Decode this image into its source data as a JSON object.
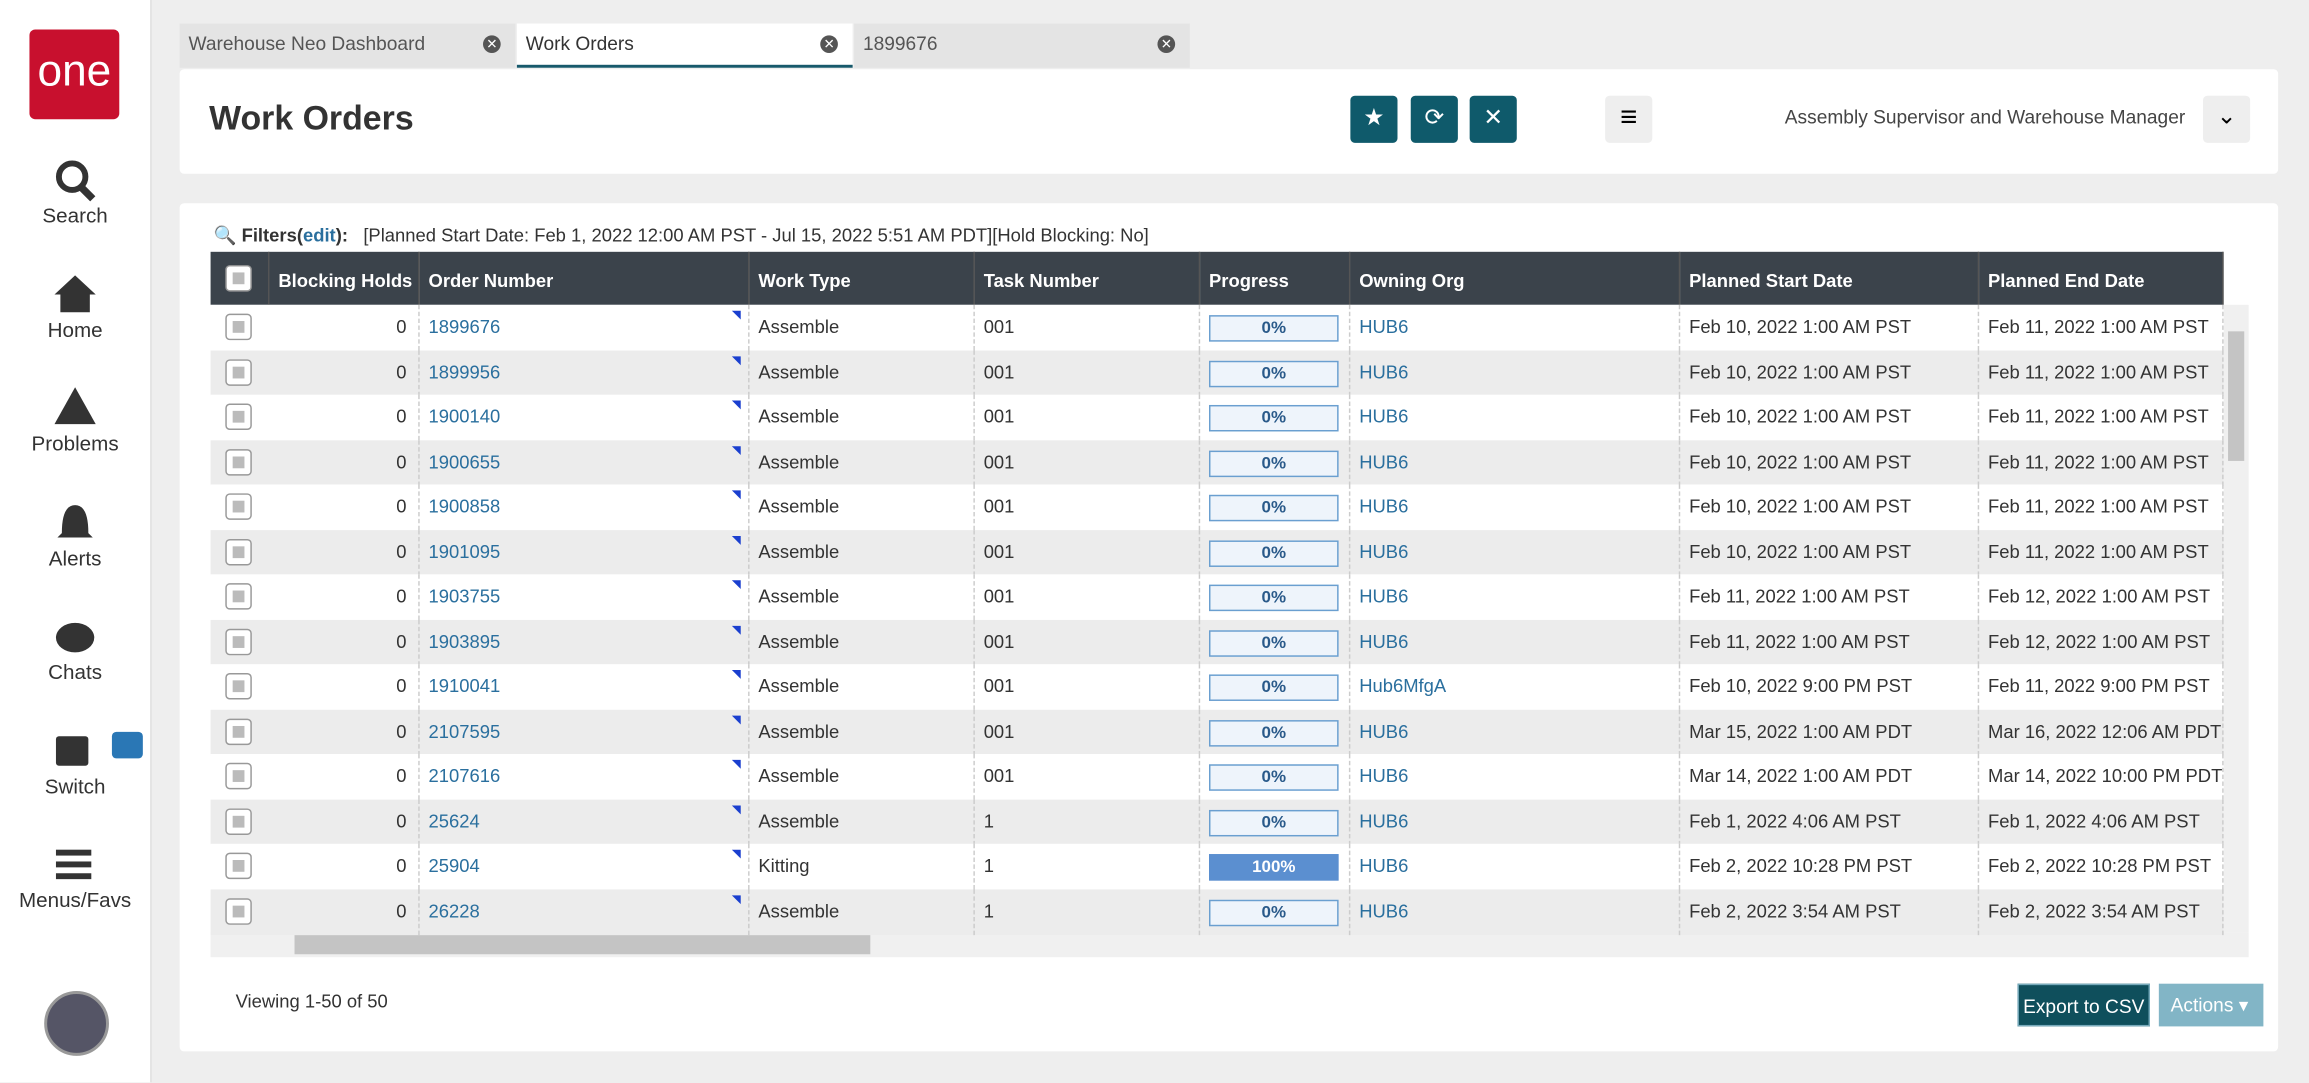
{
  "tabs": [
    "Warehouse Neo Dashboard",
    "Work Orders",
    "1899676"
  ],
  "logo": "one",
  "sidebar": [
    "Search",
    "Home",
    "Problems",
    "Alerts",
    "Chats",
    "Switch",
    "Menus/Favs"
  ],
  "header": {
    "title": "Work Orders",
    "user_role": "Assembly Supervisor and Warehouse Manager"
  },
  "filters": {
    "label": "Filters",
    "open": "(",
    "link": "edit",
    "close": "):",
    "criteria": "[Planned Start Date: Feb 1, 2022 12:00 AM PST - Jul 15, 2022 5:51 AM PDT][Hold Blocking: No]"
  },
  "table": {
    "columns": [
      "Blocking Holds",
      "Order Number",
      "Work Type",
      "Task Number",
      "Progress",
      "Owning Org",
      "Planned Start Date",
      "Planned End Date"
    ],
    "rows": [
      [
        0,
        "1899676",
        "Assemble",
        "001",
        {
          "value": 0,
          "label": "0%"
        },
        "HUB6",
        "Feb 10, 2022 1:00 AM PST",
        "Feb 11, 2022 1:00 AM PST"
      ],
      [
        0,
        "1899956",
        "Assemble",
        "001",
        {
          "value": 0,
          "label": "0%"
        },
        "HUB6",
        "Feb 10, 2022 1:00 AM PST",
        "Feb 11, 2022 1:00 AM PST"
      ],
      [
        0,
        "1900140",
        "Assemble",
        "001",
        {
          "value": 0,
          "label": "0%"
        },
        "HUB6",
        "Feb 10, 2022 1:00 AM PST",
        "Feb 11, 2022 1:00 AM PST"
      ],
      [
        0,
        "1900655",
        "Assemble",
        "001",
        {
          "value": 0,
          "label": "0%"
        },
        "HUB6",
        "Feb 10, 2022 1:00 AM PST",
        "Feb 11, 2022 1:00 AM PST"
      ],
      [
        0,
        "1900858",
        "Assemble",
        "001",
        {
          "value": 0,
          "label": "0%"
        },
        "HUB6",
        "Feb 10, 2022 1:00 AM PST",
        "Feb 11, 2022 1:00 AM PST"
      ],
      [
        0,
        "1901095",
        "Assemble",
        "001",
        {
          "value": 0,
          "label": "0%"
        },
        "HUB6",
        "Feb 10, 2022 1:00 AM PST",
        "Feb 11, 2022 1:00 AM PST"
      ],
      [
        0,
        "1903755",
        "Assemble",
        "001",
        {
          "value": 0,
          "label": "0%"
        },
        "HUB6",
        "Feb 11, 2022 1:00 AM PST",
        "Feb 12, 2022 1:00 AM PST"
      ],
      [
        0,
        "1903895",
        "Assemble",
        "001",
        {
          "value": 0,
          "label": "0%"
        },
        "HUB6",
        "Feb 11, 2022 1:00 AM PST",
        "Feb 12, 2022 1:00 AM PST"
      ],
      [
        0,
        "1910041",
        "Assemble",
        "001",
        {
          "value": 0,
          "label": "0%"
        },
        "Hub6MfgA",
        "Feb 10, 2022 9:00 PM PST",
        "Feb 11, 2022 9:00 PM PST"
      ],
      [
        0,
        "2107595",
        "Assemble",
        "001",
        {
          "value": 0,
          "label": "0%"
        },
        "HUB6",
        "Mar 15, 2022 1:00 AM PDT",
        "Mar 16, 2022 12:06 AM PDT"
      ],
      [
        0,
        "2107616",
        "Assemble",
        "001",
        {
          "value": 0,
          "label": "0%"
        },
        "HUB6",
        "Mar 14, 2022 1:00 AM PDT",
        "Mar 14, 2022 10:00 PM PDT"
      ],
      [
        0,
        "25624",
        "Assemble",
        "1",
        {
          "value": 0,
          "label": "0%"
        },
        "HUB6",
        "Feb 1, 2022 4:06 AM PST",
        "Feb 1, 2022 4:06 AM PST"
      ],
      [
        0,
        "25904",
        "Kitting",
        "1",
        {
          "value": 100,
          "label": "100%"
        },
        "HUB6",
        "Feb 2, 2022 10:28 PM PST",
        "Feb 2, 2022 10:28 PM PST"
      ],
      [
        0,
        "26228",
        "Assemble",
        "1",
        {
          "value": 0,
          "label": "0%"
        },
        "HUB6",
        "Feb 2, 2022 3:54 AM PST",
        "Feb 2, 2022 3:54 AM PST"
      ]
    ]
  },
  "footer": {
    "viewing": "Viewing 1-50 of 50",
    "export": "Export to CSV",
    "actions": "Actions"
  }
}
